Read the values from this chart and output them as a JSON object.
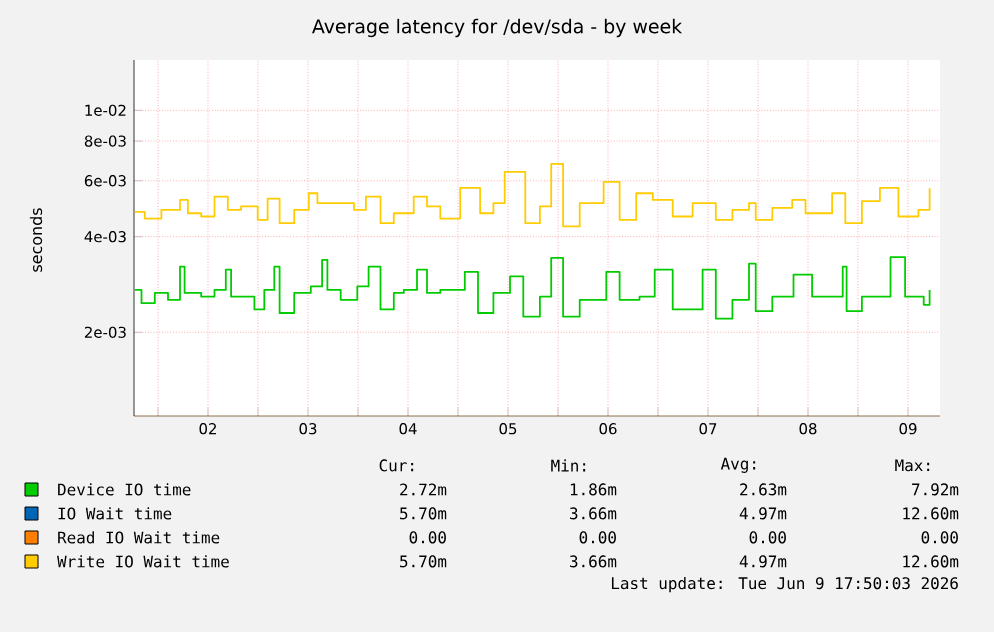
{
  "chart_data": {
    "type": "step",
    "title": "Average latency for /dev/sda - by week",
    "ylabel": "seconds",
    "log": true,
    "grid": true,
    "legend": "bottom",
    "marker": "none",
    "line_style": "solid",
    "xlim": [
      1.76,
      9.82
    ],
    "ylim": [
      0.00109,
      0.0144
    ],
    "xticks": [
      {
        "value": 2,
        "label": null
      },
      {
        "value": 2.5,
        "label": "02"
      },
      {
        "value": 3,
        "label": null
      },
      {
        "value": 3.5,
        "label": "03"
      },
      {
        "value": 4,
        "label": null
      },
      {
        "value": 4.5,
        "label": "04"
      },
      {
        "value": 5,
        "label": null
      },
      {
        "value": 5.5,
        "label": "05"
      },
      {
        "value": 6,
        "label": null
      },
      {
        "value": 6.5,
        "label": "06"
      },
      {
        "value": 7,
        "label": null
      },
      {
        "value": 7.5,
        "label": "07"
      },
      {
        "value": 8,
        "label": null
      },
      {
        "value": 8.5,
        "label": "08"
      },
      {
        "value": 9,
        "label": null
      },
      {
        "value": 9.5,
        "label": "09"
      }
    ],
    "yticks": [
      {
        "value": 0.002,
        "label": "2e-03"
      },
      {
        "value": 0.004,
        "label": "4e-03"
      },
      {
        "value": 0.006,
        "label": "6e-03"
      },
      {
        "value": 0.008,
        "label": "8e-03"
      },
      {
        "value": 0.01,
        "label": "1e-02"
      }
    ],
    "series": [
      {
        "name": "Device IO time",
        "color": "#00cc00",
        "x": [
          1.768,
          1.835,
          1.968,
          2.1,
          2.22,
          2.266,
          2.432,
          2.565,
          2.678,
          2.731,
          2.831,
          2.964,
          3.063,
          3.163,
          3.216,
          3.362,
          3.528,
          3.641,
          3.694,
          3.827,
          3.993,
          4.106,
          4.225,
          4.358,
          4.458,
          4.59,
          4.69,
          4.823,
          5.068,
          5.2,
          5.354,
          5.52,
          5.653,
          5.819,
          5.932,
          6.051,
          6.217,
          6.483,
          6.616,
          6.815,
          6.967,
          7.147,
          7.446,
          7.578,
          7.744,
          7.91,
          7.977,
          8.143,
          8.355,
          8.541,
          8.741,
          8.847,
          8.886,
          9.039,
          9.325,
          9.471,
          9.657,
          9.716
        ],
        "values": [
          0.00272,
          0.00247,
          0.00266,
          0.00253,
          0.00322,
          0.00266,
          0.00259,
          0.00272,
          0.00315,
          0.00259,
          0.00259,
          0.00236,
          0.00272,
          0.00322,
          0.0023,
          0.00266,
          0.00279,
          0.00338,
          0.00272,
          0.00253,
          0.00279,
          0.00322,
          0.00236,
          0.00266,
          0.00272,
          0.00315,
          0.00266,
          0.00272,
          0.0031,
          0.0023,
          0.00266,
          0.003,
          0.00224,
          0.00259,
          0.00343,
          0.00224,
          0.00253,
          0.0031,
          0.00253,
          0.00259,
          0.00315,
          0.00236,
          0.00315,
          0.00221,
          0.00253,
          0.00329,
          0.00233,
          0.00259,
          0.00304,
          0.00259,
          0.00259,
          0.00322,
          0.00233,
          0.00259,
          0.00345,
          0.00259,
          0.00244,
          0.00272
        ]
      },
      {
        "name": "IO Wait time",
        "color": "#0066b3"
      },
      {
        "name": "Read IO Wait time",
        "color": "#ff8000"
      },
      {
        "name": "Write IO Wait time",
        "color": "#ffcc00",
        "x": [
          1.768,
          1.868,
          2.034,
          2.22,
          2.299,
          2.432,
          2.565,
          2.698,
          2.831,
          2.997,
          3.096,
          3.216,
          3.362,
          3.508,
          3.594,
          3.76,
          3.96,
          4.079,
          4.225,
          4.358,
          4.557,
          4.69,
          4.823,
          5.022,
          5.221,
          5.354,
          5.467,
          5.673,
          5.819,
          5.932,
          6.051,
          6.217,
          6.456,
          6.616,
          6.782,
          6.948,
          7.147,
          7.346,
          7.578,
          7.744,
          7.91,
          7.977,
          8.143,
          8.342,
          8.475,
          8.741,
          8.873,
          9.039,
          9.219,
          9.404,
          9.604,
          9.716
        ],
        "values": [
          0.00479,
          0.00456,
          0.00486,
          0.00522,
          0.00474,
          0.00463,
          0.00535,
          0.00486,
          0.00498,
          0.00452,
          0.00527,
          0.00441,
          0.00486,
          0.00548,
          0.0051,
          0.0051,
          0.00486,
          0.00535,
          0.00441,
          0.00474,
          0.00535,
          0.00498,
          0.00456,
          0.0057,
          0.00474,
          0.0051,
          0.0064,
          0.00441,
          0.00498,
          0.00678,
          0.00431,
          0.0051,
          0.00595,
          0.00452,
          0.00548,
          0.00522,
          0.00463,
          0.0051,
          0.00452,
          0.00486,
          0.0051,
          0.00452,
          0.00493,
          0.00522,
          0.00474,
          0.00548,
          0.00441,
          0.00518,
          0.0057,
          0.00463,
          0.00486,
          0.00568
        ]
      }
    ],
    "annotations": [
      "Cur:",
      "Min:",
      "Avg:",
      "Max:",
      "2.72m",
      "1.86m",
      "2.63m",
      "7.92m",
      "5.70m",
      "3.66m",
      "4.97m",
      "12.60m",
      "0.00",
      "0.00",
      "0.00",
      "0.00",
      "5.70m",
      "3.66m",
      "4.97m",
      "12.60m",
      "Last update:  Tue Jun  9 17:50:03 2026"
    ]
  }
}
